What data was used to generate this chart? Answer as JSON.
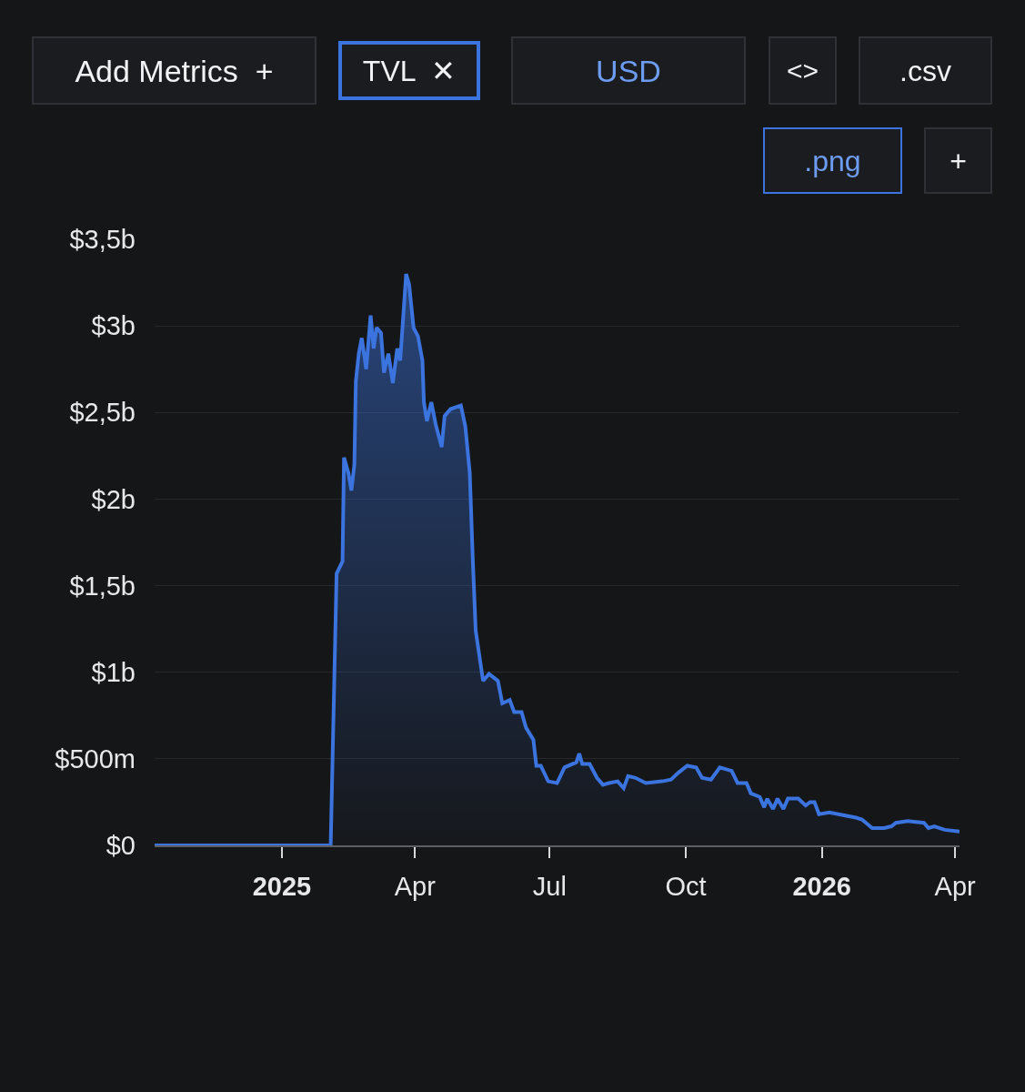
{
  "chart_data": {
    "type": "area",
    "x": [
      "2024-10-07",
      "2025-02-03",
      "2025-02-07",
      "2025-02-11",
      "2025-02-12",
      "2025-02-15",
      "2025-02-17",
      "2025-02-19",
      "2025-02-20",
      "2025-02-22",
      "2025-02-24",
      "2025-02-27",
      "2025-03-02",
      "2025-03-04",
      "2025-03-06",
      "2025-03-09",
      "2025-03-11",
      "2025-03-14",
      "2025-03-17",
      "2025-03-20",
      "2025-03-22",
      "2025-03-26",
      "2025-03-28",
      "2025-03-31",
      "2025-04-03",
      "2025-04-06",
      "2025-04-07",
      "2025-04-09",
      "2025-04-12",
      "2025-04-15",
      "2025-04-19",
      "2025-04-21",
      "2025-04-25",
      "2025-05-02",
      "2025-05-05",
      "2025-05-08",
      "2025-05-10",
      "2025-05-12",
      "2025-05-17",
      "2025-05-21",
      "2025-05-27",
      "2025-05-30",
      "2025-06-04",
      "2025-06-07",
      "2025-06-12",
      "2025-06-15",
      "2025-06-20",
      "2025-06-22",
      "2025-06-25",
      "2025-06-30",
      "2025-07-06",
      "2025-07-11",
      "2025-07-19",
      "2025-07-21",
      "2025-07-23",
      "2025-07-28",
      "2025-08-02",
      "2025-08-06",
      "2025-08-10",
      "2025-08-16",
      "2025-08-20",
      "2025-08-23",
      "2025-08-28",
      "2025-09-04",
      "2025-09-15",
      "2025-09-21",
      "2025-09-26",
      "2025-10-02",
      "2025-10-08",
      "2025-10-12",
      "2025-10-18",
      "2025-10-24",
      "2025-11-01",
      "2025-11-05",
      "2025-11-11",
      "2025-11-14",
      "2025-11-20",
      "2025-11-23",
      "2025-11-25",
      "2025-11-29",
      "2025-12-02",
      "2025-12-06",
      "2025-12-09",
      "2025-12-16",
      "2025-12-21",
      "2025-12-24",
      "2025-12-27",
      "2025-12-30",
      "2026-01-06",
      "2026-01-24",
      "2026-01-28",
      "2026-02-04",
      "2026-02-12",
      "2026-02-17",
      "2026-02-20",
      "2026-02-28",
      "2026-03-11",
      "2026-03-14",
      "2026-03-18",
      "2026-03-25",
      "2026-04-04"
    ],
    "series": [
      {
        "color": "#3b74de",
        "values": [
          0,
          0,
          1570000000,
          1640000000,
          2240000000,
          2150000000,
          2050000000,
          2200000000,
          2680000000,
          2840000000,
          2930000000,
          2750000000,
          3060000000,
          2870000000,
          2990000000,
          2960000000,
          2730000000,
          2840000000,
          2670000000,
          2870000000,
          2800000000,
          3300000000,
          3240000000,
          2990000000,
          2940000000,
          2800000000,
          2560000000,
          2450000000,
          2560000000,
          2430000000,
          2300000000,
          2480000000,
          2520000000,
          2540000000,
          2420000000,
          2150000000,
          1660000000,
          1240000000,
          950000000,
          990000000,
          950000000,
          820000000,
          840000000,
          770000000,
          770000000,
          680000000,
          610000000,
          460000000,
          460000000,
          370000000,
          360000000,
          450000000,
          480000000,
          530000000,
          470000000,
          470000000,
          390000000,
          350000000,
          360000000,
          370000000,
          330000000,
          400000000,
          390000000,
          360000000,
          370000000,
          380000000,
          420000000,
          460000000,
          450000000,
          390000000,
          380000000,
          450000000,
          430000000,
          360000000,
          360000000,
          300000000,
          280000000,
          220000000,
          270000000,
          210000000,
          270000000,
          210000000,
          270000000,
          270000000,
          230000000,
          250000000,
          250000000,
          180000000,
          190000000,
          160000000,
          150000000,
          100000000,
          100000000,
          110000000,
          130000000,
          140000000,
          130000000,
          100000000,
          110000000,
          90000000,
          80000000
        ]
      }
    ],
    "xlim": [
      "2024-10-07",
      "2026-04-04"
    ],
    "xticks": [
      {
        "value": "2025-01-01",
        "label": "2025"
      },
      {
        "value": "2025-04-01",
        "label": "Apr"
      },
      {
        "value": "2025-07-01",
        "label": "Jul"
      },
      {
        "value": "2025-10-01",
        "label": "Oct"
      },
      {
        "value": "2026-01-01",
        "label": "2026"
      },
      {
        "value": "2026-04-01",
        "label": "Apr"
      }
    ],
    "ylim": [
      0,
      3500000000
    ],
    "yticks": [
      {
        "value": 0,
        "label": "$0"
      },
      {
        "value": 500000000,
        "label": "$500m"
      },
      {
        "value": 1000000000,
        "label": "$1b"
      },
      {
        "value": 1500000000,
        "label": "$1,5b"
      },
      {
        "value": 2000000000,
        "label": "$2b"
      },
      {
        "value": 2500000000,
        "label": "$2,5b"
      },
      {
        "value": 3000000000,
        "label": "$3b"
      },
      {
        "value": 3500000000,
        "label": "$3,5b"
      }
    ],
    "grid": "y",
    "annotations": [
      "Add Metrics  +",
      "TVL  ✕",
      "USD",
      "<>",
      ".csv",
      ".png",
      "+"
    ]
  }
}
